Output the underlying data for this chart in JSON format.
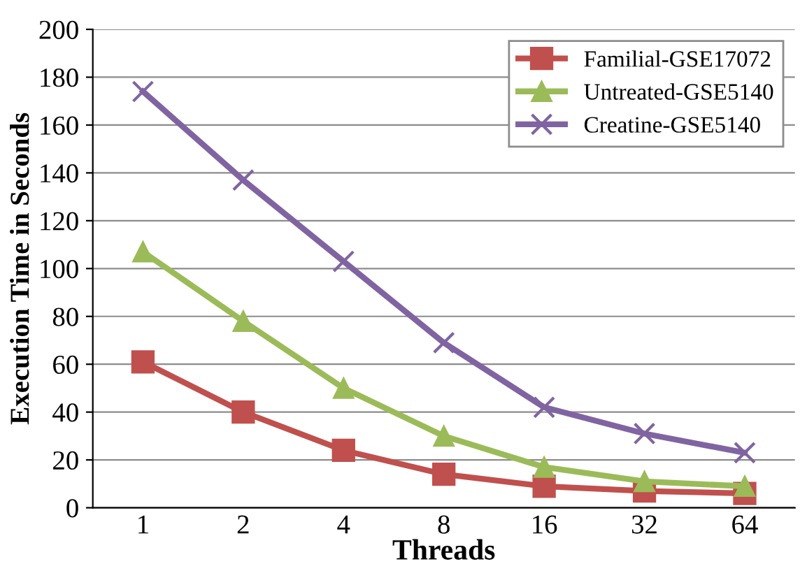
{
  "chart_data": {
    "type": "line",
    "xlabel": "Threads",
    "ylabel": "Execution Time in Seconds",
    "categories": [
      "1",
      "2",
      "4",
      "8",
      "16",
      "32",
      "64"
    ],
    "series": [
      {
        "name": "Familial-GSE17072",
        "color": "#c0504d",
        "marker": "square",
        "values": [
          61,
          40,
          24,
          14,
          9,
          7,
          6
        ]
      },
      {
        "name": "Untreated-GSE5140",
        "color": "#9bbb59",
        "marker": "triangle",
        "values": [
          107,
          78,
          50,
          30,
          17,
          11,
          9
        ]
      },
      {
        "name": "Creatine-GSE5140",
        "color": "#8064a2",
        "marker": "cross",
        "values": [
          174,
          137,
          103,
          69,
          42,
          31,
          23
        ]
      }
    ],
    "ylim": [
      0,
      200
    ],
    "yticks": [
      0,
      20,
      40,
      60,
      80,
      100,
      120,
      140,
      160,
      180,
      200
    ],
    "grid": "y",
    "legend": "top right",
    "line_style": "solid"
  }
}
